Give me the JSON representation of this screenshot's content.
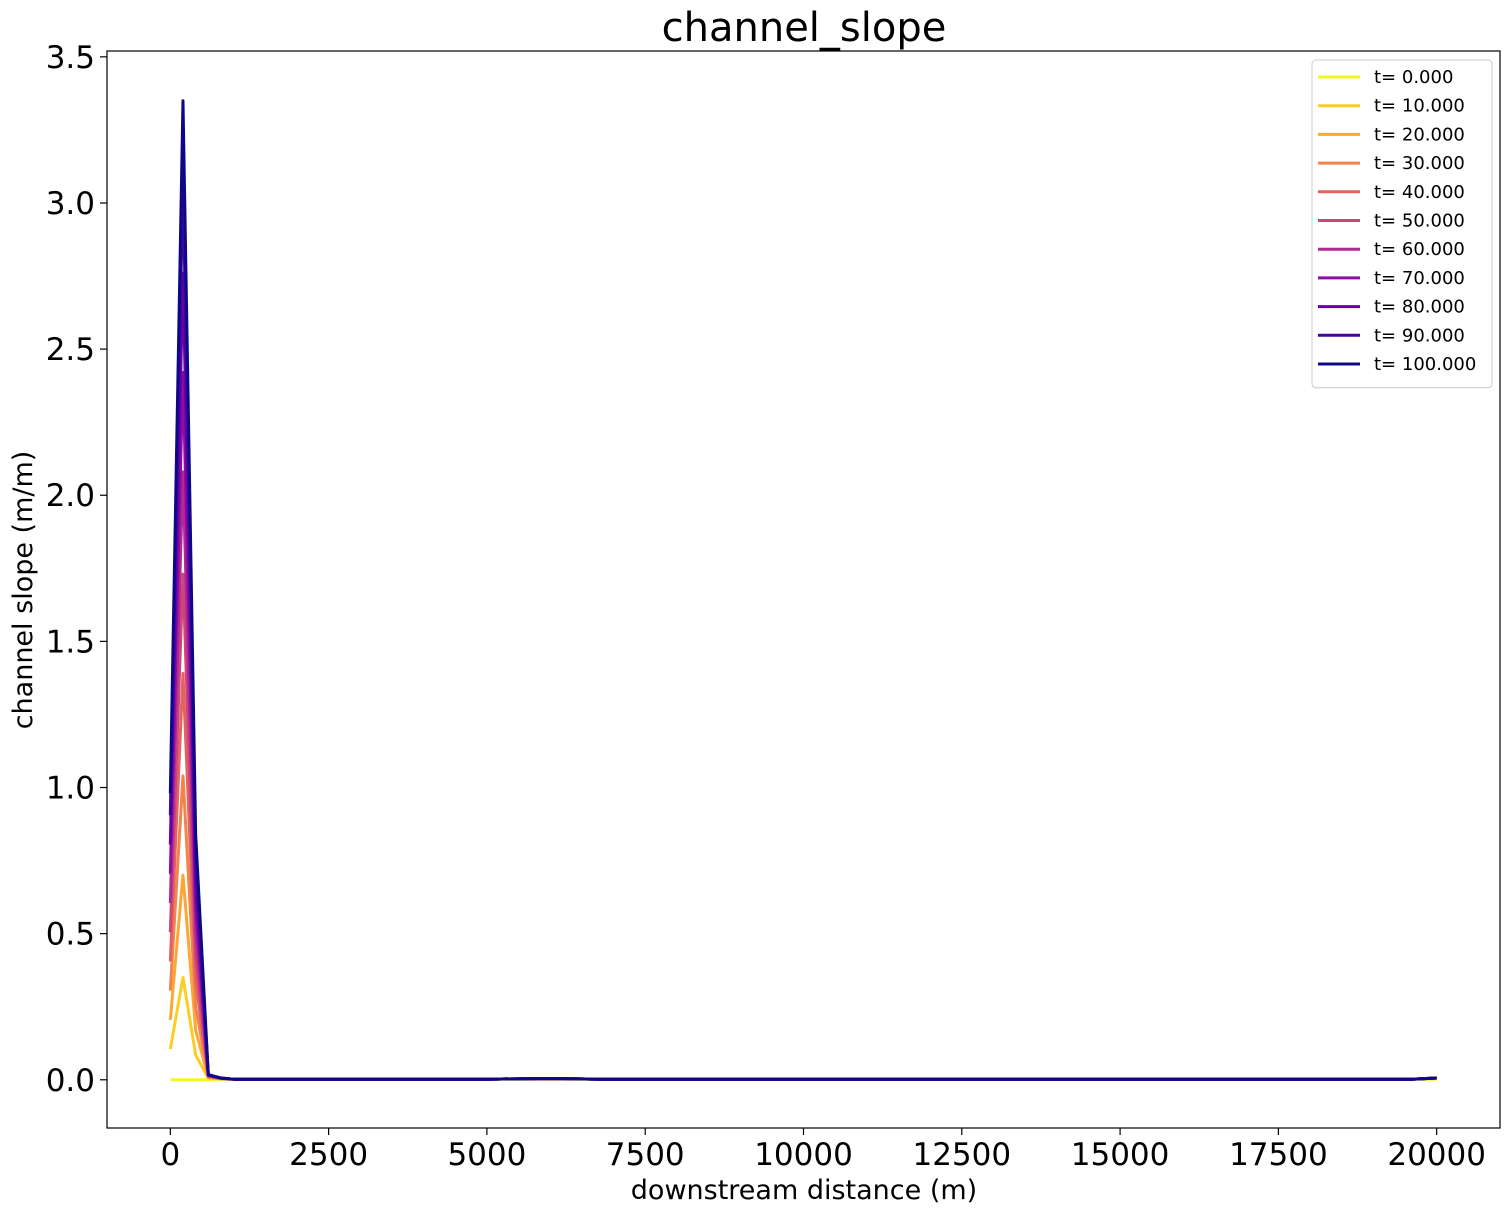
{
  "chart_data": {
    "type": "line",
    "title": "channel_slope",
    "xlabel": "downstream distance (m)",
    "ylabel": "channel slope (m/m)",
    "xlim": [
      -1000,
      21000
    ],
    "ylim": [
      -0.165,
      3.52
    ],
    "xticks": [
      0,
      2500,
      5000,
      7500,
      10000,
      12500,
      15000,
      17500,
      20000
    ],
    "xtick_labels": [
      "0",
      "2500",
      "5000",
      "7500",
      "10000",
      "12500",
      "15000",
      "17500",
      "20000"
    ],
    "yticks": [
      0.0,
      0.5,
      1.0,
      1.5,
      2.0,
      2.5,
      3.0,
      3.5
    ],
    "ytick_labels": [
      "0.0",
      "0.5",
      "1.0",
      "1.5",
      "2.0",
      "2.5",
      "3.0",
      "3.5"
    ],
    "grid": false,
    "legend_position": "top-right",
    "x": [
      0,
      200,
      400,
      600,
      800,
      1000,
      2000,
      3000,
      4000,
      5000,
      5800,
      6200,
      6800,
      8000,
      10000,
      12000,
      14000,
      16000,
      18000,
      19600,
      20000
    ],
    "series": [
      {
        "name": "t= 0.000",
        "color": "#f0f921",
        "values": [
          0,
          0,
          0,
          0,
          0.002,
          0.002,
          0.002,
          0.002,
          0.002,
          0.002,
          0.002,
          0.002,
          0.002,
          0.002,
          0.002,
          0.002,
          0.002,
          0.002,
          0.002,
          0.002,
          0.002
        ]
      },
      {
        "name": "t= 10.000",
        "color": "#fccd25",
        "values": [
          0.105,
          0.35,
          0.085,
          0.005,
          0.003,
          0.002,
          0.002,
          0.002,
          0.002,
          0.002,
          0.004,
          0.004,
          0.002,
          0.002,
          0.002,
          0.002,
          0.002,
          0.002,
          0.002,
          0.002,
          0.006
        ]
      },
      {
        "name": "t= 20.000",
        "color": "#fca636",
        "values": [
          0.205,
          0.7,
          0.17,
          0.008,
          0.003,
          0.002,
          0.002,
          0.002,
          0.002,
          0.002,
          0.004,
          0.004,
          0.002,
          0.002,
          0.002,
          0.002,
          0.002,
          0.002,
          0.002,
          0.002,
          0.006
        ]
      },
      {
        "name": "t= 30.000",
        "color": "#f2844b",
        "values": [
          0.305,
          1.04,
          0.25,
          0.01,
          0.004,
          0.002,
          0.002,
          0.002,
          0.002,
          0.002,
          0.004,
          0.004,
          0.002,
          0.002,
          0.002,
          0.002,
          0.002,
          0.002,
          0.002,
          0.002,
          0.006
        ]
      },
      {
        "name": "t= 40.000",
        "color": "#e16462",
        "values": [
          0.405,
          1.39,
          0.34,
          0.012,
          0.004,
          0.002,
          0.002,
          0.002,
          0.002,
          0.002,
          0.004,
          0.004,
          0.002,
          0.002,
          0.002,
          0.002,
          0.002,
          0.002,
          0.002,
          0.002,
          0.006
        ]
      },
      {
        "name": "t= 50.000",
        "color": "#cc4778",
        "values": [
          0.505,
          1.73,
          0.42,
          0.013,
          0.005,
          0.002,
          0.002,
          0.002,
          0.002,
          0.002,
          0.004,
          0.004,
          0.002,
          0.002,
          0.002,
          0.002,
          0.002,
          0.002,
          0.002,
          0.002,
          0.006
        ]
      },
      {
        "name": "t= 60.000",
        "color": "#b12a90",
        "values": [
          0.605,
          2.08,
          0.5,
          0.014,
          0.005,
          0.002,
          0.002,
          0.002,
          0.002,
          0.002,
          0.004,
          0.004,
          0.002,
          0.002,
          0.002,
          0.002,
          0.002,
          0.002,
          0.002,
          0.002,
          0.006
        ]
      },
      {
        "name": "t= 70.000",
        "color": "#8f0da4",
        "values": [
          0.705,
          2.42,
          0.59,
          0.015,
          0.005,
          0.002,
          0.002,
          0.002,
          0.002,
          0.002,
          0.004,
          0.004,
          0.002,
          0.002,
          0.002,
          0.002,
          0.002,
          0.002,
          0.002,
          0.002,
          0.006
        ]
      },
      {
        "name": "t= 80.000",
        "color": "#6a00a8",
        "values": [
          0.805,
          2.76,
          0.67,
          0.016,
          0.006,
          0.002,
          0.002,
          0.002,
          0.002,
          0.002,
          0.004,
          0.004,
          0.002,
          0.002,
          0.002,
          0.002,
          0.002,
          0.002,
          0.002,
          0.002,
          0.006
        ]
      },
      {
        "name": "t= 90.000",
        "color": "#41049d",
        "values": [
          0.905,
          3.08,
          0.76,
          0.017,
          0.006,
          0.002,
          0.002,
          0.002,
          0.002,
          0.002,
          0.004,
          0.004,
          0.002,
          0.002,
          0.002,
          0.002,
          0.002,
          0.002,
          0.002,
          0.002,
          0.006
        ]
      },
      {
        "name": "t= 100.000",
        "color": "#0d0887",
        "values": [
          0.98,
          3.35,
          0.84,
          0.018,
          0.006,
          0.002,
          0.002,
          0.002,
          0.002,
          0.002,
          0.004,
          0.004,
          0.002,
          0.002,
          0.002,
          0.002,
          0.002,
          0.002,
          0.002,
          0.002,
          0.006
        ]
      }
    ]
  }
}
